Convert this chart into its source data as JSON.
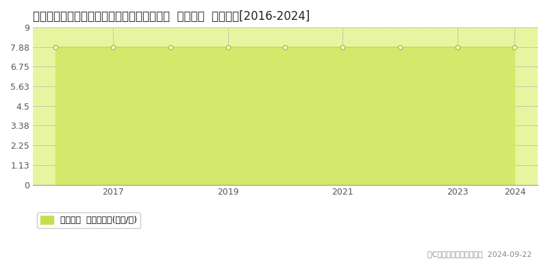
{
  "title": "滋賀県愛知郡愛荘町安孫子字八木代８５０番  公示地価  地価推移[2016-2024]",
  "years": [
    2016,
    2017,
    2018,
    2019,
    2020,
    2021,
    2022,
    2023,
    2024
  ],
  "values": [
    7.88,
    7.88,
    7.88,
    7.88,
    7.88,
    7.88,
    7.88,
    7.88,
    7.88
  ],
  "yticks": [
    0,
    1.13,
    2.25,
    3.38,
    4.5,
    5.63,
    6.75,
    7.88,
    9
  ],
  "ylim": [
    0,
    9
  ],
  "xlim": [
    2015.6,
    2024.4
  ],
  "fill_color": "#d4e96b",
  "line_color": "#c8dc50",
  "marker_color": "#ffffff",
  "marker_edge_color": "#b0c840",
  "grid_color": "#aaaaaa",
  "bg_color": "#ffffff",
  "plot_bg_color": "#e8f5a0",
  "legend_label": "公示地価  平均坪単価(万円/坪)",
  "legend_marker_color": "#c8dc50",
  "copyright_text": "（C）土地価格ドットコム  2024-09-22",
  "xtick_years": [
    2017,
    2019,
    2021,
    2023,
    2024
  ],
  "title_fontsize": 12,
  "tick_fontsize": 9,
  "legend_fontsize": 9,
  "copyright_fontsize": 8
}
